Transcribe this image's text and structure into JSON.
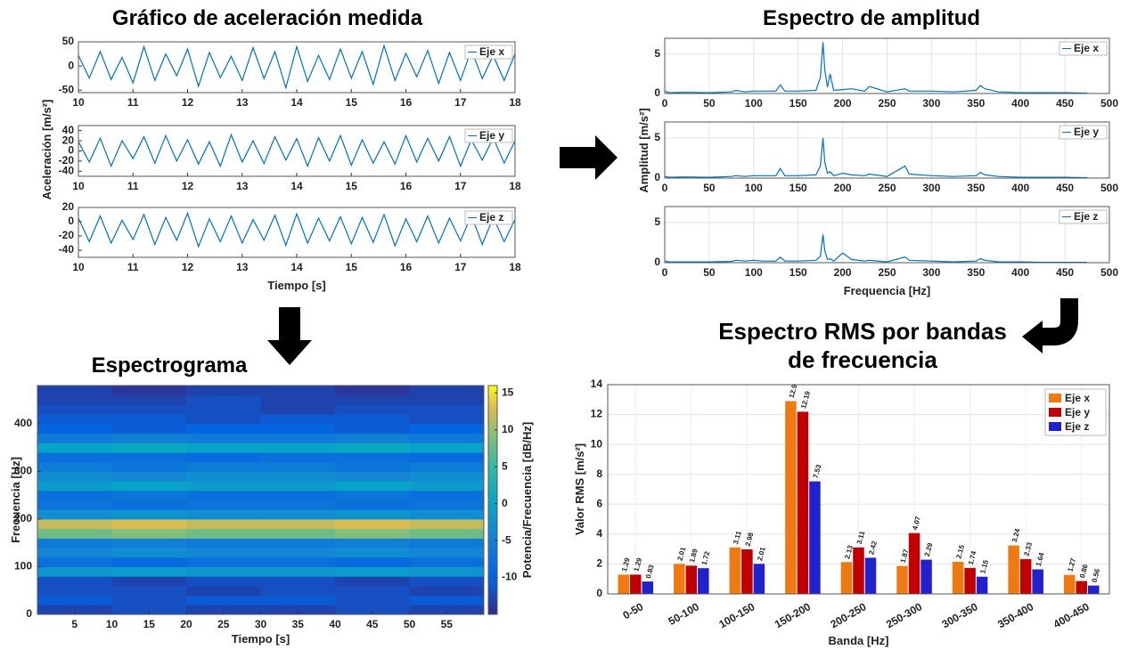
{
  "chart_data": [
    {
      "type": "line",
      "title": "Gráfico de aceleración medida",
      "xlabel": "Tiempo [s]",
      "ylabel": "Aceleración [m/s²]",
      "xlim": [
        10,
        18
      ],
      "xticks": [
        10,
        11,
        12,
        13,
        14,
        15,
        16,
        17,
        18
      ],
      "grid": false,
      "x": [
        10,
        10.2,
        10.4,
        10.6,
        10.8,
        11,
        11.2,
        11.4,
        11.6,
        11.8,
        12,
        12.2,
        12.4,
        12.6,
        12.8,
        13,
        13.2,
        13.4,
        13.6,
        13.8,
        14,
        14.2,
        14.4,
        14.6,
        14.8,
        15,
        15.2,
        15.4,
        15.6,
        15.8,
        16,
        16.2,
        16.4,
        16.6,
        16.8,
        17,
        17.2,
        17.4,
        17.6,
        17.8,
        18
      ],
      "subplots": [
        {
          "ylim": [
            -55,
            50
          ],
          "yticks": [
            -50,
            0,
            50
          ],
          "series": [
            {
              "name": "Eje x",
              "color": "#0072bd",
              "values": [
                22,
                -25,
                30,
                -28,
                18,
                -35,
                40,
                -30,
                25,
                -20,
                35,
                -42,
                28,
                -24,
                20,
                -30,
                38,
                -26,
                30,
                -45,
                40,
                -32,
                22,
                -28,
                35,
                -25,
                30,
                -38,
                42,
                -30,
                26,
                -22,
                32,
                -36,
                28,
                -30,
                34,
                -26,
                22,
                -30,
                25
              ]
            }
          ]
        },
        {
          "ylim": [
            -50,
            50
          ],
          "yticks": [
            -40,
            -20,
            0,
            20,
            40
          ],
          "series": [
            {
              "name": "Eje y",
              "color": "#0072bd",
              "values": [
                18,
                -22,
                25,
                -30,
                20,
                -15,
                28,
                -24,
                30,
                -20,
                22,
                -26,
                18,
                -30,
                32,
                -22,
                20,
                -25,
                28,
                -18,
                24,
                -30,
                26,
                -20,
                30,
                -28,
                22,
                -24,
                18,
                -26,
                30,
                -22,
                25,
                -20,
                28,
                -30,
                22,
                -18,
                26,
                -24,
                20
              ]
            }
          ]
        },
        {
          "ylim": [
            -50,
            20
          ],
          "yticks": [
            -40,
            -20,
            0,
            20
          ],
          "series": [
            {
              "name": "Eje z",
              "color": "#0072bd",
              "values": [
                5,
                -28,
                8,
                -30,
                2,
                -25,
                10,
                -32,
                6,
                -26,
                12,
                -35,
                4,
                -28,
                8,
                -30,
                3,
                -26,
                9,
                -33,
                11,
                -30,
                5,
                -27,
                7,
                -31,
                6,
                -29,
                10,
                -34,
                4,
                -28,
                8,
                -30,
                5,
                -27,
                9,
                -32,
                6,
                -28,
                3
              ]
            }
          ]
        }
      ]
    },
    {
      "type": "line",
      "title": "Espectro de amplitud",
      "xlabel": "Frequencia [Hz]",
      "ylabel": "Amplitud [m/s²]",
      "xlim": [
        0,
        500
      ],
      "xticks": [
        0,
        50,
        100,
        150,
        200,
        250,
        300,
        350,
        400,
        450,
        500
      ],
      "grid": true,
      "x": [
        0,
        5,
        25,
        50,
        75,
        80,
        90,
        100,
        110,
        125,
        130,
        135,
        150,
        170,
        175,
        178,
        180,
        183,
        186,
        190,
        200,
        210,
        225,
        230,
        250,
        270,
        275,
        300,
        325,
        350,
        355,
        360,
        375,
        400,
        425,
        450,
        475
      ],
      "subplots": [
        {
          "ylim": [
            0,
            7
          ],
          "yticks": [
            0,
            5
          ],
          "series": [
            {
              "name": "Eje x",
              "color": "#0072bd",
              "values": [
                0.3,
                0.1,
                0.15,
                0.1,
                0.2,
                0.4,
                0.2,
                0.3,
                0.3,
                0.3,
                1.1,
                0.3,
                0.3,
                0.4,
                2,
                6.5,
                3,
                0.8,
                2.5,
                0.4,
                0.5,
                0.6,
                0.3,
                0.9,
                0.2,
                0.6,
                0.3,
                0.3,
                0.2,
                0.4,
                1,
                0.6,
                0.2,
                0.1,
                0.1,
                0.1,
                0.05
              ]
            }
          ]
        },
        {
          "ylim": [
            0,
            7
          ],
          "yticks": [
            0,
            5
          ],
          "series": [
            {
              "name": "Eje y",
              "color": "#0072bd",
              "values": [
                0.2,
                0.1,
                0.15,
                0.1,
                0.2,
                0.3,
                0.2,
                0.3,
                0.3,
                0.3,
                1.2,
                0.3,
                0.3,
                0.4,
                1.5,
                5,
                2,
                0.6,
                0.8,
                0.3,
                0.6,
                0.4,
                0.3,
                0.5,
                0.2,
                1.5,
                0.5,
                0.3,
                0.2,
                0.3,
                0.7,
                0.4,
                0.2,
                0.1,
                0.1,
                0.1,
                0.05
              ]
            }
          ]
        },
        {
          "ylim": [
            0,
            7
          ],
          "yticks": [
            0,
            5
          ],
          "series": [
            {
              "name": "Eje z",
              "color": "#0072bd",
              "values": [
                0.2,
                0.1,
                0.1,
                0.1,
                0.15,
                0.3,
                0.2,
                0.3,
                0.2,
                0.2,
                0.7,
                0.2,
                0.2,
                0.3,
                0.8,
                3.5,
                1.5,
                0.4,
                0.5,
                0.2,
                1.2,
                0.4,
                0.2,
                0.3,
                0.1,
                0.7,
                0.3,
                0.2,
                0.1,
                0.2,
                0.5,
                0.3,
                0.1,
                0.1,
                0.05,
                0.05,
                0.05
              ]
            }
          ]
        }
      ]
    },
    {
      "type": "heatmap",
      "title": "Espectrograma",
      "xlabel": "Tiempo [s]",
      "ylabel": "Frecuencia [Hz]",
      "colorbar_label": "Potencia/Frecuencia [dB/Hz]",
      "xlim": [
        0,
        60
      ],
      "xticks": [
        5,
        10,
        15,
        20,
        25,
        30,
        35,
        40,
        45,
        50,
        55
      ],
      "ylim": [
        0,
        480
      ],
      "yticks": [
        0,
        100,
        200,
        300,
        400
      ],
      "clim": [
        -15,
        16
      ],
      "cticks": [
        -10,
        -5,
        0,
        5,
        10,
        15
      ],
      "xbins": [
        0,
        10,
        20,
        30,
        40,
        50,
        60
      ],
      "ybins": [
        0,
        20,
        40,
        60,
        80,
        100,
        120,
        140,
        160,
        180,
        200,
        220,
        240,
        260,
        280,
        300,
        320,
        340,
        360,
        380,
        400,
        420,
        440,
        460,
        480
      ],
      "values": [
        [
          -13,
          -12,
          -13,
          -13,
          -12,
          -13
        ],
        [
          -11,
          -12,
          -11,
          -11,
          -12,
          -11
        ],
        [
          -12,
          -12,
          -13,
          -12,
          -12,
          -13
        ],
        [
          -12,
          -13,
          -12,
          -12,
          -13,
          -12
        ],
        [
          -2,
          -1,
          -2,
          -2,
          -1,
          -2
        ],
        [
          -8,
          -9,
          -8,
          -8,
          -9,
          -8
        ],
        [
          -4,
          -3,
          -4,
          -4,
          -3,
          -4
        ],
        [
          -6,
          -5,
          -6,
          -6,
          -5,
          -6
        ],
        [
          8,
          9,
          8,
          8,
          9,
          8
        ],
        [
          12,
          13,
          12,
          12,
          13,
          12
        ],
        [
          -3,
          -2,
          -3,
          -3,
          -2,
          -3
        ],
        [
          -7,
          -8,
          -7,
          -7,
          -8,
          -7
        ],
        [
          -8,
          -7,
          -8,
          -8,
          -7,
          -8
        ],
        [
          -1,
          0,
          -1,
          -1,
          0,
          -1
        ],
        [
          -3,
          -4,
          -3,
          -3,
          -4,
          -3
        ],
        [
          -6,
          -7,
          -6,
          -6,
          -7,
          -6
        ],
        [
          -8,
          -8,
          -9,
          -8,
          -8,
          -9
        ],
        [
          0,
          1,
          0,
          0,
          1,
          0
        ],
        [
          -6,
          -5,
          -6,
          -6,
          -5,
          -6
        ],
        [
          -10,
          -11,
          -10,
          -10,
          -11,
          -10
        ],
        [
          -11,
          -11,
          -12,
          -11,
          -11,
          -12
        ],
        [
          -12,
          -12,
          -12,
          -13,
          -12,
          -12
        ],
        [
          -13,
          -13,
          -12,
          -13,
          -13,
          -13
        ],
        [
          -13,
          -14,
          -13,
          -13,
          -14,
          -13
        ]
      ]
    },
    {
      "type": "bar",
      "title": "Espectro RMS por bandas de frecuencia",
      "xlabel": "Banda [Hz]",
      "ylabel": "Valor RMS [m/s²]",
      "categories": [
        "0-50",
        "50-100",
        "100-150",
        "150-200",
        "200-250",
        "250-300",
        "300-350",
        "350-400",
        "400-450"
      ],
      "ylim": [
        0,
        14
      ],
      "yticks": [
        0,
        2,
        4,
        6,
        8,
        10,
        12,
        14
      ],
      "grid": true,
      "legend": "top-right",
      "series": [
        {
          "name": "Eje x",
          "color": "#f07a12",
          "values": [
            1.29,
            2.01,
            3.11,
            12.9,
            2.13,
            1.87,
            2.15,
            3.24,
            1.27
          ]
        },
        {
          "name": "Eje y",
          "color": "#c00000",
          "values": [
            1.29,
            1.89,
            2.98,
            12.19,
            3.11,
            4.07,
            1.74,
            2.33,
            0.86
          ]
        },
        {
          "name": "Eje z",
          "color": "#2222cc",
          "values": [
            0.83,
            1.72,
            2.01,
            7.53,
            2.42,
            2.29,
            1.15,
            1.64,
            0.56
          ]
        }
      ]
    }
  ]
}
